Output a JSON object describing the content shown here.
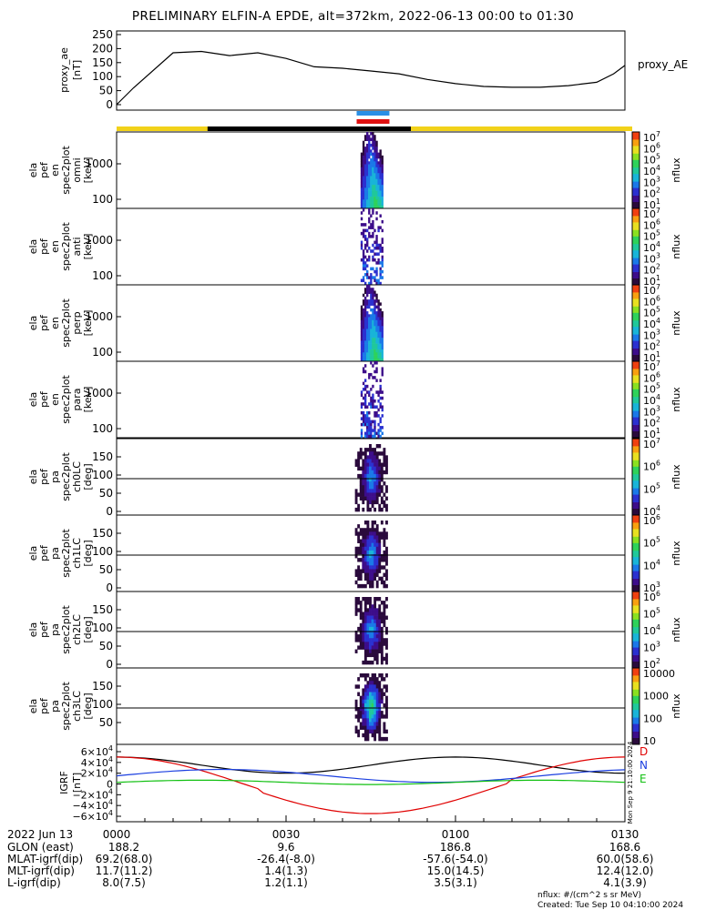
{
  "title": "PRELIMINARY ELFIN-A EPDE, alt=372km, 2022-06-13 00:00 to 01:30",
  "proxy_ae": {
    "ylabel": "proxy_ae [nT]",
    "legend": "proxy_AE",
    "yticks": [
      "0",
      "50",
      "100",
      "150",
      "200",
      "250"
    ],
    "ylim": [
      0,
      250
    ],
    "t_min": [
      0,
      3,
      10,
      15,
      20,
      25,
      30,
      35,
      40,
      45,
      50,
      55,
      60,
      65,
      70,
      75,
      80,
      85,
      88,
      90
    ],
    "values": [
      0,
      60,
      185,
      190,
      175,
      185,
      165,
      135,
      130,
      120,
      110,
      90,
      75,
      65,
      62,
      62,
      68,
      80,
      110,
      140
    ]
  },
  "spec_panels": [
    {
      "label": "ela pef en spec2plot omni [keV]",
      "yticks": [
        "100",
        "1000"
      ],
      "cb_ticks": [
        "10^7",
        "10^6",
        "10^5",
        "10^4",
        "10^3",
        "10^2",
        "10^1"
      ],
      "cb_label": "nflux"
    },
    {
      "label": "ela pef en spec2plot anti [keV]",
      "yticks": [
        "100",
        "1000"
      ],
      "cb_ticks": [
        "10^7",
        "10^6",
        "10^5",
        "10^4",
        "10^3",
        "10^2",
        "10^1"
      ],
      "cb_label": "nflux"
    },
    {
      "label": "ela pef en spec2plot perp [keV]",
      "yticks": [
        "100",
        "1000"
      ],
      "cb_ticks": [
        "10^7",
        "10^6",
        "10^5",
        "10^4",
        "10^3",
        "10^2",
        "10^1"
      ],
      "cb_label": "nflux"
    },
    {
      "label": "ela pef en spec2plot para [keV]",
      "yticks": [
        "100",
        "1000"
      ],
      "cb_ticks": [
        "10^7",
        "10^6",
        "10^5",
        "10^4",
        "10^3",
        "10^2",
        "10^1"
      ],
      "cb_label": "nflux"
    }
  ],
  "pa_panels": [
    {
      "label": "ela pef pa spec2plot ch0LC [deg]",
      "yticks": [
        "0",
        "50",
        "100",
        "150"
      ],
      "cb_ticks": [
        "10^7",
        "10^6",
        "10^5",
        "10^4"
      ],
      "cb_label": "nflux"
    },
    {
      "label": "ela pef pa spec2plot ch1LC [deg]",
      "yticks": [
        "0",
        "50",
        "100",
        "150"
      ],
      "cb_ticks": [
        "10^6",
        "10^5",
        "10^4",
        "10^3"
      ],
      "cb_label": "nflux"
    },
    {
      "label": "ela pef pa spec2plot ch2LC [deg]",
      "yticks": [
        "0",
        "50",
        "100",
        "150"
      ],
      "cb_ticks": [
        "10^6",
        "10^5",
        "10^4",
        "10^3",
        "10^2"
      ],
      "cb_label": "nflux"
    },
    {
      "label": "ela pef pa spec2plot ch3LC [deg]",
      "yticks": [
        "50",
        "100",
        "150"
      ],
      "cb_ticks": [
        "10000",
        "1000",
        "100",
        "10"
      ],
      "cb_label": "nflux"
    }
  ],
  "igrf": {
    "ylabel": "IGRF [nT]",
    "yticks": [
      "6×10^4",
      "4×10^4",
      "2×10^4",
      "0",
      "−2×10^4",
      "−4×10^4",
      "−6×10^4"
    ],
    "legend": [
      "D",
      "N",
      "E"
    ],
    "colors": {
      "D": "#e00000",
      "N": "#1a3ee0",
      "E": "#10c010",
      "total": "#000000"
    },
    "side_note": "Mon Sep 9 21:10:00 2024"
  },
  "time_axis": {
    "date": "2022 Jun 13",
    "ticks": [
      "0000",
      "0030",
      "0100",
      "0130"
    ],
    "rows": [
      {
        "name": "GLON (east)",
        "values": [
          "188.2",
          "9.6",
          "186.8",
          "168.6"
        ]
      },
      {
        "name": "MLAT-igrf(dip)",
        "values": [
          "69.2(68.0)",
          "-26.4(-8.0)",
          "-57.6(-54.0)",
          "60.0(58.6)"
        ]
      },
      {
        "name": "MLT-igrf(dip)",
        "values": [
          "11.7(11.2)",
          "1.4(1.3)",
          "15.0(14.5)",
          "12.4(12.0)"
        ]
      },
      {
        "name": "L-igrf(dip)",
        "values": [
          "8.0(7.5)",
          "1.2(1.1)",
          "3.5(3.1)",
          "4.1(3.9)"
        ]
      }
    ]
  },
  "footer": {
    "units": "nflux: #/(cm^2 s sr MeV)",
    "created": "Created: Tue Sep 10 04:10:00 2024"
  },
  "bars": {
    "sci_zones": [
      "#2a8fe6",
      "#e01010"
    ],
    "orbit_colors": [
      "#f2d21a",
      "#000000"
    ]
  },
  "chart_data": {
    "type": "heatmap",
    "title": "PRELIMINARY ELFIN-A EPDE, alt=372km, 2022-06-13 00:00 to 01:30",
    "x_range_utc": [
      "00:00",
      "01:30"
    ],
    "science_zone_utc": [
      "00:43",
      "00:49"
    ],
    "series": [
      {
        "name": "proxy_AE",
        "type": "line"
      },
      {
        "name": "D",
        "type": "line"
      },
      {
        "name": "N",
        "type": "line"
      },
      {
        "name": "E",
        "type": "line"
      }
    ]
  }
}
